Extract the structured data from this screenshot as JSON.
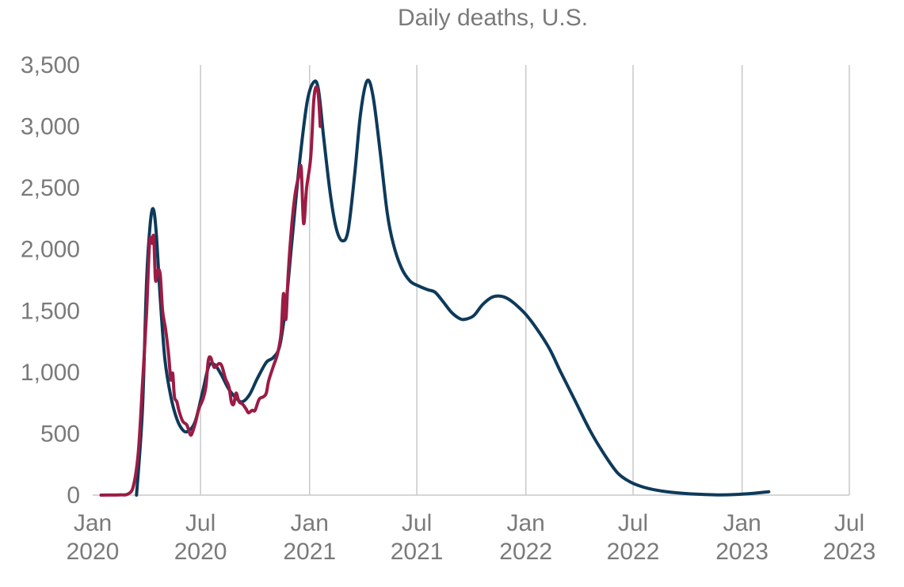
{
  "chart_data": {
    "type": "line",
    "title": "Daily deaths, U.S.",
    "xlabel": "",
    "ylabel": "",
    "ylim": [
      0,
      3500
    ],
    "xlim": [
      "2020-01",
      "2023-07"
    ],
    "y_ticks": [
      {
        "value": 0,
        "label": "0"
      },
      {
        "value": 500,
        "label": "500"
      },
      {
        "value": 1000,
        "label": "1,000"
      },
      {
        "value": 1500,
        "label": "1,500"
      },
      {
        "value": 2000,
        "label": "2,000"
      },
      {
        "value": 2500,
        "label": "2,500"
      },
      {
        "value": 3000,
        "label": "3,000"
      },
      {
        "value": 3500,
        "label": "3,500"
      }
    ],
    "x_ticks": [
      {
        "date": "2020-01",
        "label": [
          "Jan",
          "2020"
        ]
      },
      {
        "date": "2020-07",
        "label": [
          "Jul",
          "2020"
        ]
      },
      {
        "date": "2021-01",
        "label": [
          "Jan",
          "2021"
        ]
      },
      {
        "date": "2021-07",
        "label": [
          "Jul",
          "2021"
        ]
      },
      {
        "date": "2022-01",
        "label": [
          "Jan",
          "2022"
        ]
      },
      {
        "date": "2022-07",
        "label": [
          "Jul",
          "2022"
        ]
      },
      {
        "date": "2023-01",
        "label": [
          "Jan",
          "2023"
        ]
      },
      {
        "date": "2023-07",
        "label": [
          "Jul",
          "2023"
        ]
      }
    ],
    "grid": "vertical",
    "legend": "none",
    "series": [
      {
        "color": "#0e3a5a",
        "points": [
          [
            "2020-03-15",
            0
          ],
          [
            "2020-03-25",
            700
          ],
          [
            "2020-04-01",
            1750
          ],
          [
            "2020-04-07",
            2200
          ],
          [
            "2020-04-12",
            2330
          ],
          [
            "2020-04-17",
            2150
          ],
          [
            "2020-04-24",
            1600
          ],
          [
            "2020-05-02",
            1100
          ],
          [
            "2020-05-12",
            800
          ],
          [
            "2020-05-22",
            620
          ],
          [
            "2020-06-01",
            530
          ],
          [
            "2020-06-10",
            520
          ],
          [
            "2020-06-22",
            600
          ],
          [
            "2020-07-05",
            850
          ],
          [
            "2020-07-15",
            1050
          ],
          [
            "2020-07-25",
            1060
          ],
          [
            "2020-08-05",
            980
          ],
          [
            "2020-08-18",
            860
          ],
          [
            "2020-09-01",
            780
          ],
          [
            "2020-09-10",
            760
          ],
          [
            "2020-09-22",
            820
          ],
          [
            "2020-10-05",
            950
          ],
          [
            "2020-10-20",
            1080
          ],
          [
            "2020-11-01",
            1120
          ],
          [
            "2020-11-12",
            1220
          ],
          [
            "2020-11-22",
            1550
          ],
          [
            "2020-12-01",
            2000
          ],
          [
            "2020-12-15",
            2700
          ],
          [
            "2020-12-28",
            3200
          ],
          [
            "2021-01-08",
            3360
          ],
          [
            "2021-01-16",
            3300
          ],
          [
            "2021-01-25",
            2900
          ],
          [
            "2021-02-05",
            2450
          ],
          [
            "2021-02-15",
            2170
          ],
          [
            "2021-02-25",
            2070
          ],
          [
            "2021-03-07",
            2150
          ],
          [
            "2021-03-18",
            2600
          ],
          [
            "2021-03-28",
            3100
          ],
          [
            "2021-04-08",
            3370
          ],
          [
            "2021-04-18",
            3250
          ],
          [
            "2021-04-30",
            2800
          ],
          [
            "2021-05-12",
            2300
          ],
          [
            "2021-05-22",
            2050
          ],
          [
            "2021-06-05",
            1850
          ],
          [
            "2021-06-20",
            1740
          ],
          [
            "2021-07-05",
            1700
          ],
          [
            "2021-07-20",
            1670
          ],
          [
            "2021-08-01",
            1650
          ],
          [
            "2021-08-15",
            1570
          ],
          [
            "2021-08-28",
            1490
          ],
          [
            "2021-09-10",
            1440
          ],
          [
            "2021-09-20",
            1430
          ],
          [
            "2021-10-05",
            1460
          ],
          [
            "2021-10-20",
            1550
          ],
          [
            "2021-11-05",
            1610
          ],
          [
            "2021-11-18",
            1620
          ],
          [
            "2021-12-01",
            1600
          ],
          [
            "2021-12-15",
            1550
          ],
          [
            "2022-01-01",
            1470
          ],
          [
            "2022-01-20",
            1350
          ],
          [
            "2022-02-10",
            1190
          ],
          [
            "2022-03-01",
            1000
          ],
          [
            "2022-03-25",
            770
          ],
          [
            "2022-04-20",
            520
          ],
          [
            "2022-05-15",
            320
          ],
          [
            "2022-06-05",
            180
          ],
          [
            "2022-06-25",
            110
          ],
          [
            "2022-07-15",
            70
          ],
          [
            "2022-08-10",
            40
          ],
          [
            "2022-09-10",
            20
          ],
          [
            "2022-10-15",
            8
          ],
          [
            "2022-11-20",
            2
          ],
          [
            "2022-12-20",
            5
          ],
          [
            "2023-01-20",
            15
          ],
          [
            "2023-02-15",
            28
          ]
        ]
      },
      {
        "color": "#9b1c44",
        "points": [
          [
            "2020-01-15",
            0
          ],
          [
            "2020-02-15",
            2
          ],
          [
            "2020-03-01",
            10
          ],
          [
            "2020-03-10",
            80
          ],
          [
            "2020-03-18",
            350
          ],
          [
            "2020-03-25",
            900
          ],
          [
            "2020-04-01",
            1500
          ],
          [
            "2020-04-06",
            2060
          ],
          [
            "2020-04-10",
            2050
          ],
          [
            "2020-04-13",
            2100
          ],
          [
            "2020-04-16",
            1750
          ],
          [
            "2020-04-20",
            1830
          ],
          [
            "2020-04-24",
            1790
          ],
          [
            "2020-04-28",
            1500
          ],
          [
            "2020-05-03",
            1350
          ],
          [
            "2020-05-08",
            1150
          ],
          [
            "2020-05-12",
            940
          ],
          [
            "2020-05-15",
            990
          ],
          [
            "2020-05-18",
            800
          ],
          [
            "2020-05-22",
            760
          ],
          [
            "2020-05-26",
            680
          ],
          [
            "2020-06-01",
            600
          ],
          [
            "2020-06-08",
            570
          ],
          [
            "2020-06-14",
            490
          ],
          [
            "2020-06-18",
            520
          ],
          [
            "2020-06-23",
            600
          ],
          [
            "2020-06-28",
            700
          ],
          [
            "2020-07-05",
            780
          ],
          [
            "2020-07-10",
            880
          ],
          [
            "2020-07-14",
            1090
          ],
          [
            "2020-07-18",
            1120
          ],
          [
            "2020-07-24",
            1040
          ],
          [
            "2020-08-01",
            1070
          ],
          [
            "2020-08-06",
            1050
          ],
          [
            "2020-08-12",
            950
          ],
          [
            "2020-08-18",
            880
          ],
          [
            "2020-08-22",
            760
          ],
          [
            "2020-08-26",
            740
          ],
          [
            "2020-08-30",
            830
          ],
          [
            "2020-09-04",
            760
          ],
          [
            "2020-09-10",
            740
          ],
          [
            "2020-09-16",
            700
          ],
          [
            "2020-09-20",
            670
          ],
          [
            "2020-09-26",
            690
          ],
          [
            "2020-10-01",
            690
          ],
          [
            "2020-10-08",
            780
          ],
          [
            "2020-10-15",
            800
          ],
          [
            "2020-10-20",
            830
          ],
          [
            "2020-10-24",
            930
          ],
          [
            "2020-11-01",
            1050
          ],
          [
            "2020-11-08",
            1150
          ],
          [
            "2020-11-14",
            1320
          ],
          [
            "2020-11-18",
            1640
          ],
          [
            "2020-11-22",
            1430
          ],
          [
            "2020-11-26",
            1800
          ],
          [
            "2020-12-02",
            2200
          ],
          [
            "2020-12-08",
            2460
          ],
          [
            "2020-12-14",
            2600
          ],
          [
            "2020-12-18",
            2660
          ],
          [
            "2020-12-22",
            2210
          ],
          [
            "2020-12-27",
            2500
          ],
          [
            "2021-01-03",
            2750
          ],
          [
            "2021-01-08",
            3200
          ],
          [
            "2021-01-12",
            3320
          ],
          [
            "2021-01-16",
            3250
          ],
          [
            "2021-01-19",
            3000
          ]
        ]
      }
    ]
  }
}
